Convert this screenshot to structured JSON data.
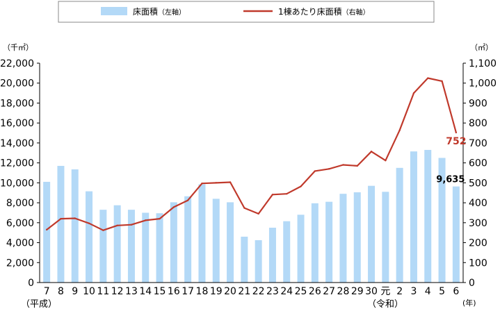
{
  "chart_data": {
    "type": "bar+line",
    "categories": [
      "7",
      "8",
      "9",
      "10",
      "11",
      "12",
      "13",
      "14",
      "15",
      "16",
      "17",
      "18",
      "19",
      "20",
      "21",
      "22",
      "23",
      "24",
      "25",
      "26",
      "27",
      "28",
      "29",
      "30",
      "元",
      "2",
      "3",
      "4",
      "5",
      "6"
    ],
    "era_labels": [
      "（平成）",
      "（令和）"
    ],
    "x_unit": "(年)",
    "series": [
      {
        "name": "床面積",
        "name_suffix": "（左軸）",
        "type": "bar",
        "axis": "left",
        "color": "#b3d9f7",
        "values": [
          10100,
          11700,
          11350,
          9150,
          7300,
          7750,
          7300,
          7000,
          6950,
          8050,
          8650,
          9850,
          8400,
          8050,
          4600,
          4250,
          5500,
          6150,
          6800,
          7950,
          8100,
          8900,
          9050,
          9700,
          9100,
          11500,
          13150,
          13300,
          12500,
          9635
        ]
      },
      {
        "name": "1棟あたり床面積",
        "name_suffix": "（右軸）",
        "type": "line",
        "axis": "right",
        "color": "#c0392b",
        "values": [
          265,
          320,
          322,
          297,
          262,
          286,
          290,
          312,
          320,
          378,
          412,
          497,
          500,
          503,
          374,
          345,
          441,
          445,
          482,
          559,
          570,
          590,
          585,
          657,
          612,
          763,
          950,
          1025,
          1010,
          752
        ]
      }
    ],
    "left_axis": {
      "unit": "（千㎡）",
      "ylim": [
        0,
        22000
      ],
      "ticks": [
        "0",
        "2,000",
        "4,000",
        "6,000",
        "8,000",
        "10,000",
        "12,000",
        "14,000",
        "16,000",
        "18,000",
        "20,000",
        "22,000"
      ]
    },
    "right_axis": {
      "unit": "（㎡）",
      "ylim": [
        0,
        1100
      ],
      "ticks": [
        "0",
        "100",
        "200",
        "300",
        "400",
        "500",
        "600",
        "700",
        "800",
        "900",
        "1,000",
        "1,100"
      ]
    },
    "data_labels": {
      "bar_last": "9,635",
      "line_last": "752"
    },
    "legend_placement": "top",
    "grid": false
  }
}
